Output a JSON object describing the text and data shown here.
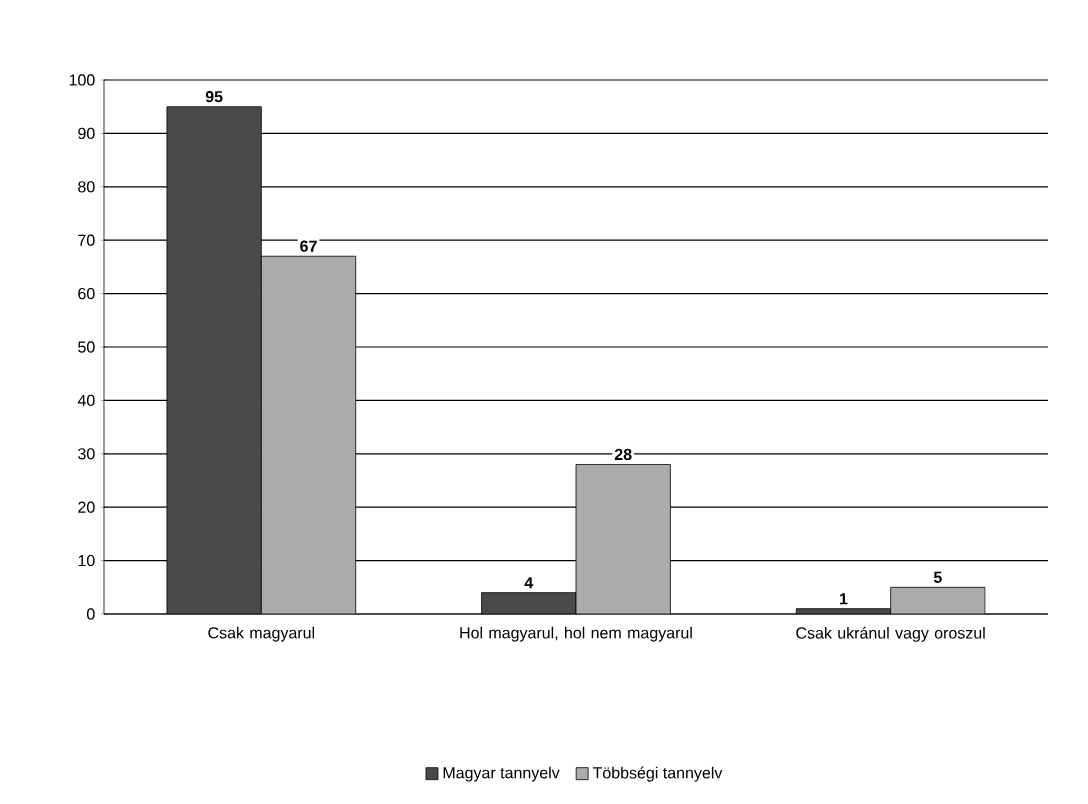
{
  "chart_data": {
    "type": "bar",
    "categories": [
      "Csak magyarul",
      "Hol magyarul, hol nem magyarul",
      "Csak ukránul vagy oroszul"
    ],
    "series": [
      {
        "name": "Magyar tannyelv",
        "color": "#4a4a4a",
        "values": [
          95,
          4,
          1
        ]
      },
      {
        "name": "Többségi tannyelv",
        "color": "#ababab",
        "values": [
          67,
          28,
          5
        ]
      }
    ],
    "ylim": [
      0,
      100
    ],
    "yticks": [
      0,
      10,
      20,
      30,
      40,
      50,
      60,
      70,
      80,
      90,
      100
    ],
    "grid": "y",
    "legend": "bottom",
    "data_labels": true
  }
}
